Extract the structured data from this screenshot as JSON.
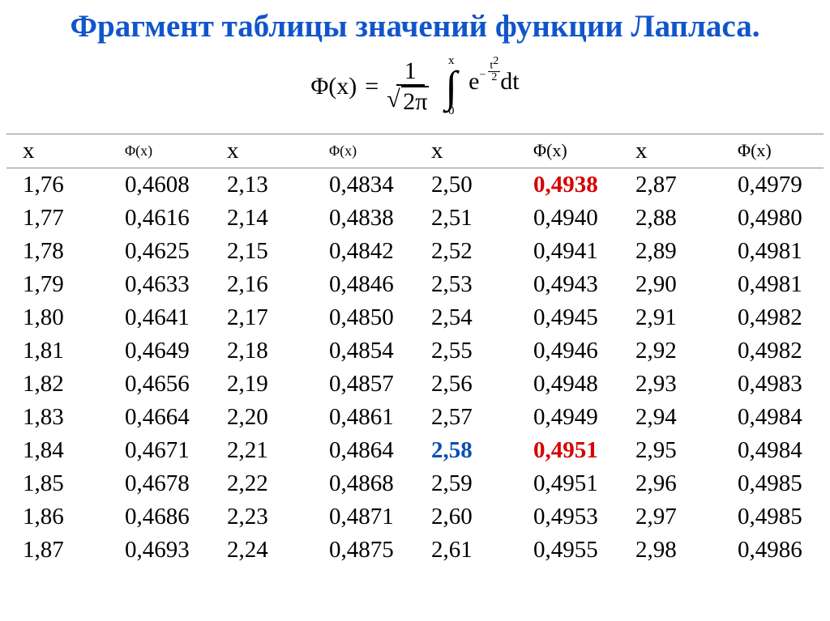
{
  "title": {
    "text": "Фрагмент таблицы значений функции Лапласа.",
    "color": "#1155cc"
  },
  "formula": {
    "lhs": "Φ(x)",
    "eq": "=",
    "frac_num": "1",
    "frac_den_inner": "2π",
    "int_upper": "x",
    "int_lower": "0",
    "e": "e",
    "expo_neg": "−",
    "expo_num": "t",
    "expo_sq": "2",
    "expo_den": "2",
    "dt": "dt"
  },
  "table": {
    "headers": [
      "x",
      "Φ(x)",
      "x",
      "Φ(x)",
      "x",
      "Φ(x)",
      "x",
      "Φ(x)"
    ],
    "highlight": {
      "red": [
        [
          0,
          5
        ],
        [
          8,
          5
        ]
      ],
      "blue": [
        [
          8,
          4
        ]
      ]
    },
    "rows": [
      [
        "1,76",
        "0,4608",
        "2,13",
        "0,4834",
        "2,50",
        "0,4938",
        "2,87",
        "0,4979"
      ],
      [
        "1,77",
        "0,4616",
        "2,14",
        "0,4838",
        "2,51",
        "0,4940",
        "2,88",
        "0,4980"
      ],
      [
        "1,78",
        "0,4625",
        "2,15",
        "0,4842",
        "2,52",
        "0,4941",
        "2,89",
        "0,4981"
      ],
      [
        "1,79",
        "0,4633",
        "2,16",
        "0,4846",
        "2,53",
        "0,4943",
        "2,90",
        "0,4981"
      ],
      [
        "1,80",
        "0,4641",
        "2,17",
        "0,4850",
        "2,54",
        "0,4945",
        "2,91",
        "0,4982"
      ],
      [
        "1,81",
        "0,4649",
        "2,18",
        "0,4854",
        "2,55",
        "0,4946",
        "2,92",
        "0,4982"
      ],
      [
        "1,82",
        "0,4656",
        "2,19",
        "0,4857",
        "2,56",
        "0,4948",
        "2,93",
        "0,4983"
      ],
      [
        "1,83",
        "0,4664",
        "2,20",
        "0,4861",
        "2,57",
        "0,4949",
        "2,94",
        "0,4984"
      ],
      [
        "1,84",
        "0,4671",
        "2,21",
        "0,4864",
        "2,58",
        "0,4951",
        "2,95",
        "0,4984"
      ],
      [
        "1,85",
        "0,4678",
        "2,22",
        "0,4868",
        "2,59",
        "0,4951",
        "2,96",
        "0,4985"
      ],
      [
        "1,86",
        "0,4686",
        "2,23",
        "0,4871",
        "2,60",
        "0,4953",
        "2,97",
        "0,4985"
      ],
      [
        "1,87",
        "0,4693",
        "2,24",
        "0,4875",
        "2,61",
        "0,4955",
        "2,98",
        "0,4986"
      ]
    ]
  }
}
